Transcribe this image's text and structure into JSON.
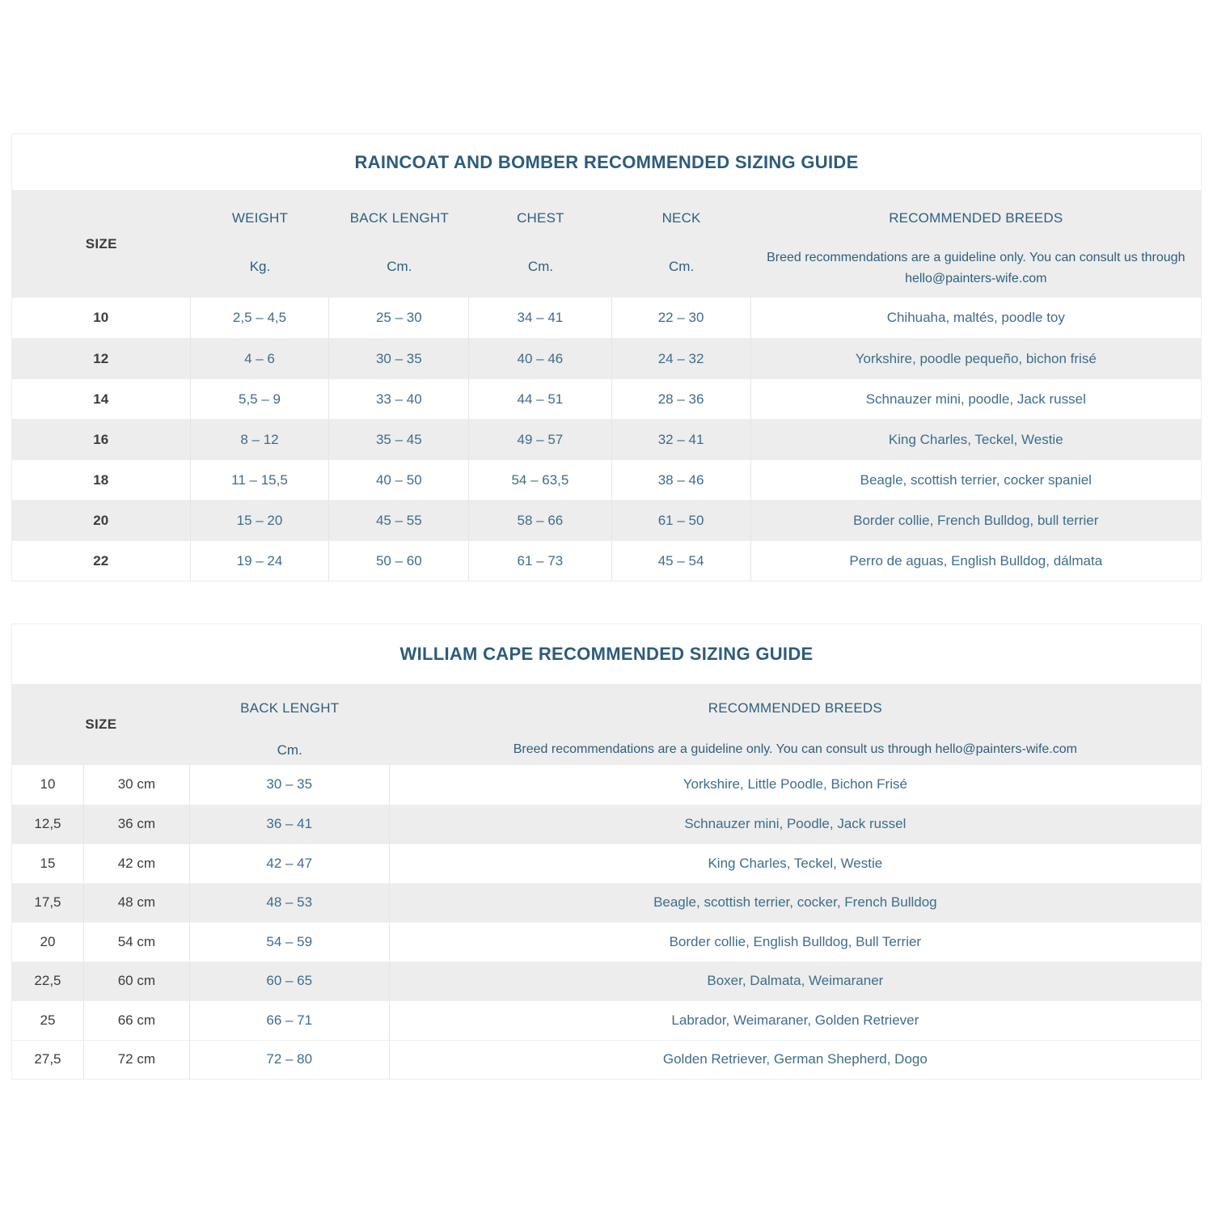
{
  "colors": {
    "heading_blue": "#2d5c7c",
    "value_blue": "#3f6d8b",
    "dark_text": "#3c3c3c",
    "band_gray": "#ededed"
  },
  "tables": [
    {
      "title": "RAINCOAT AND BOMBER RECOMMENDED SIZING GUIDE",
      "size_header": "SIZE",
      "columns": [
        {
          "label": "WEIGHT",
          "unit": "Kg."
        },
        {
          "label": "BACK LENGHT",
          "unit": "Cm."
        },
        {
          "label": "CHEST",
          "unit": "Cm."
        },
        {
          "label": "NECK",
          "unit": "Cm."
        },
        {
          "label": "RECOMMENDED BREEDS",
          "note": "Breed recommendations are a guideline only. You can consult us through hello@painters-wife.com"
        }
      ],
      "rows": [
        {
          "size": "10",
          "weight": "2,5 – 4,5",
          "back_length": "25 – 30",
          "chest": "34 – 41",
          "neck": "22 – 30",
          "breeds": "Chihuaha, maltés, poodle toy"
        },
        {
          "size": "12",
          "weight": "4 – 6",
          "back_length": "30 – 35",
          "chest": "40 – 46",
          "neck": "24 – 32",
          "breeds": "Yorkshire, poodle pequeño, bichon frisé"
        },
        {
          "size": "14",
          "weight": "5,5 – 9",
          "back_length": "33 – 40",
          "chest": "44 – 51",
          "neck": "28 – 36",
          "breeds": "Schnauzer mini, poodle, Jack russel"
        },
        {
          "size": "16",
          "weight": "8 – 12",
          "back_length": "35 – 45",
          "chest": "49 – 57",
          "neck": "32 – 41",
          "breeds": "King Charles, Teckel, Westie"
        },
        {
          "size": "18",
          "weight": "11 – 15,5",
          "back_length": "40 – 50",
          "chest": "54 – 63,5",
          "neck": "38 – 46",
          "breeds": "Beagle, scottish terrier, cocker spaniel"
        },
        {
          "size": "20",
          "weight": "15 – 20",
          "back_length": "45 – 55",
          "chest": "58 – 66",
          "neck": "61 – 50",
          "breeds": "Border collie, French Bulldog, bull terrier"
        },
        {
          "size": "22",
          "weight": "19 – 24",
          "back_length": "50 – 60",
          "chest": "61 – 73",
          "neck": "45 – 54",
          "breeds": "Perro de aguas, English Bulldog, dálmata"
        }
      ]
    },
    {
      "title": "WILLIAM CAPE RECOMMENDED SIZING GUIDE",
      "size_header": "SIZE",
      "columns": [
        {
          "label": "BACK LENGHT",
          "unit": "Cm."
        },
        {
          "label": "RECOMMENDED BREEDS",
          "note": "Breed recommendations are a guideline only. You can consult us through hello@painters-wife.com"
        }
      ],
      "rows": [
        {
          "size": "10",
          "size_cm": "30 cm",
          "back_length": "30 – 35",
          "breeds": "Yorkshire, Little Poodle, Bichon Frisé"
        },
        {
          "size": "12,5",
          "size_cm": "36 cm",
          "back_length": "36 – 41",
          "breeds": "Schnauzer mini, Poodle, Jack russel"
        },
        {
          "size": "15",
          "size_cm": "42 cm",
          "back_length": "42 – 47",
          "breeds": "King Charles, Teckel, Westie"
        },
        {
          "size": "17,5",
          "size_cm": "48 cm",
          "back_length": "48 – 53",
          "breeds": "Beagle, scottish terrier, cocker, French Bulldog"
        },
        {
          "size": "20",
          "size_cm": "54 cm",
          "back_length": "54 – 59",
          "breeds": "Border collie, English Bulldog, Bull Terrier"
        },
        {
          "size": "22,5",
          "size_cm": "60 cm",
          "back_length": "60 – 65",
          "breeds": "Boxer, Dalmata, Weimaraner"
        },
        {
          "size": "25",
          "size_cm": "66 cm",
          "back_length": "66 – 71",
          "breeds": "Labrador, Weimaraner, Golden Retriever"
        },
        {
          "size": "27,5",
          "size_cm": "72 cm",
          "back_length": "72 – 80",
          "breeds": "Golden Retriever, German Shepherd, Dogo"
        }
      ]
    }
  ]
}
